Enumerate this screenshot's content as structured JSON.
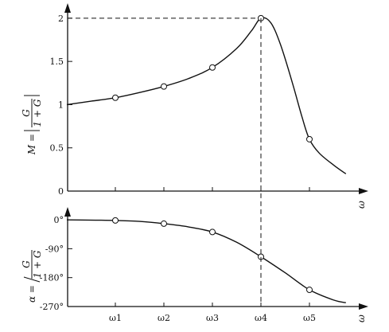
{
  "chart_data": [
    {
      "type": "line",
      "xlabel": "ω",
      "ylabel_parts": {
        "prefix": "M =",
        "num": "G",
        "den": "1 + G"
      },
      "ylim": [
        0,
        2.1
      ],
      "yticks": [
        0,
        0.5,
        1,
        1.5,
        2
      ],
      "ytick_labels": [
        "0",
        "0.5",
        "1",
        "1.5",
        "2"
      ],
      "grid": false,
      "x_ticks": [
        "ω1",
        "ω2",
        "ω3",
        "ω4",
        "ω5"
      ],
      "curve": [
        [
          -1.0,
          1.0
        ],
        [
          -0.5,
          1.04
        ],
        [
          0,
          1.08
        ],
        [
          0.5,
          1.14
        ],
        [
          1,
          1.21
        ],
        [
          1.5,
          1.3
        ],
        [
          2,
          1.43
        ],
        [
          2.5,
          1.65
        ],
        [
          2.8,
          1.85
        ],
        [
          3,
          2.0
        ],
        [
          3.2,
          1.95
        ],
        [
          3.4,
          1.7
        ],
        [
          3.65,
          1.25
        ],
        [
          3.85,
          0.85
        ],
        [
          4,
          0.6
        ],
        [
          4.2,
          0.44
        ],
        [
          4.5,
          0.3
        ],
        [
          4.75,
          0.2
        ]
      ],
      "markers": [
        [
          0,
          1.08
        ],
        [
          1,
          1.21
        ],
        [
          2,
          1.43
        ],
        [
          3,
          2.0
        ],
        [
          4,
          0.6
        ]
      ],
      "peak": {
        "x": 3,
        "y": 2.0
      }
    },
    {
      "type": "line",
      "xlabel": "ω",
      "ylabel_parts": {
        "prefix": "α =",
        "num": "G",
        "den": "1 + G"
      },
      "ylim": [
        -270,
        20
      ],
      "yticks": [
        0,
        -90,
        -180,
        -270
      ],
      "ytick_labels": [
        "0°",
        "-90°",
        "-180°",
        "-270°"
      ],
      "grid": false,
      "x_ticks": [
        "ω1",
        "ω2",
        "ω3",
        "ω4",
        "ω5"
      ],
      "curve": [
        [
          -1.0,
          0
        ],
        [
          0,
          -2
        ],
        [
          0.5,
          -5
        ],
        [
          1,
          -12
        ],
        [
          1.5,
          -22
        ],
        [
          2,
          -38
        ],
        [
          2.5,
          -70
        ],
        [
          3,
          -115
        ],
        [
          3.5,
          -165
        ],
        [
          4,
          -218
        ],
        [
          4.5,
          -250
        ],
        [
          4.75,
          -258
        ]
      ],
      "markers": [
        [
          0,
          -2
        ],
        [
          1,
          -12
        ],
        [
          2,
          -38
        ],
        [
          3,
          -115
        ],
        [
          4,
          -218
        ]
      ]
    }
  ]
}
